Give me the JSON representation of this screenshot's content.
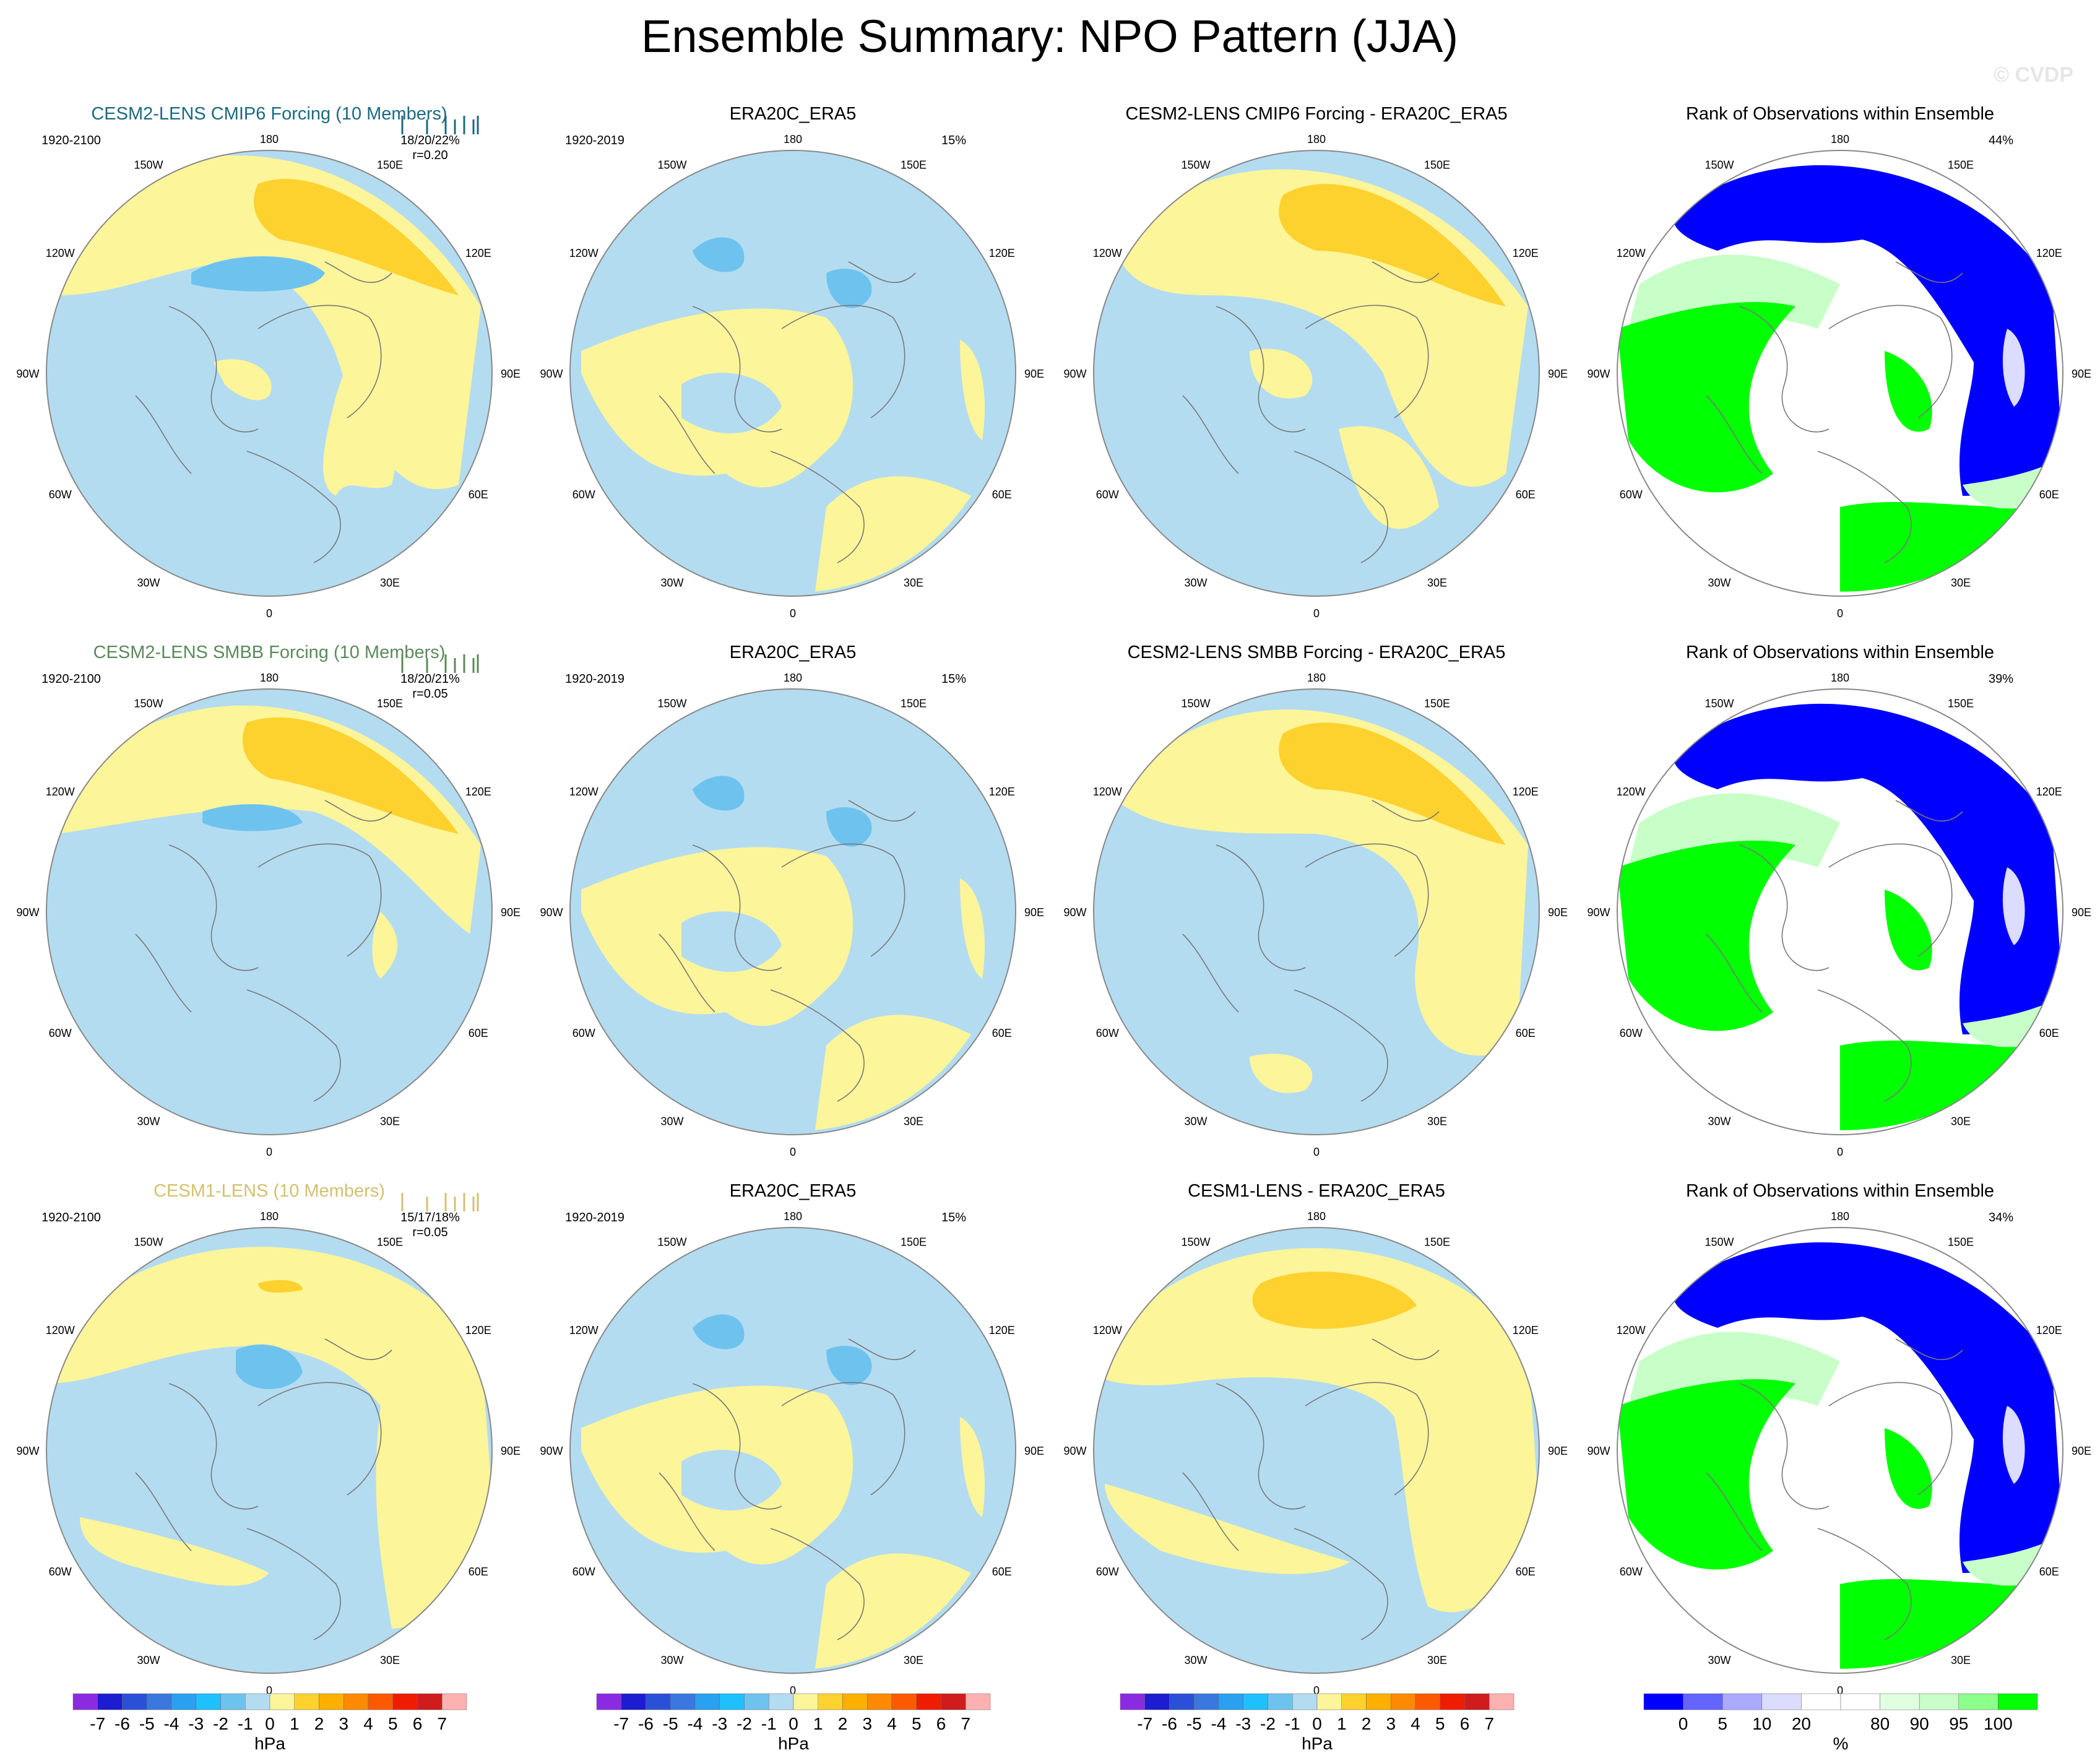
{
  "title": "Ensemble Summary: NPO Pattern (JJA)",
  "watermark": "© CVDP",
  "colors": {
    "ocean_blue": "#b4dcf0",
    "low_blue": "#6ec3ee",
    "low_blue2": "#5aa8e8",
    "yellow": "#fdf59a",
    "orange": "#fdd22e",
    "title_cmip6": "#1a6a80",
    "title_smbb": "#5a8a5a",
    "title_cesm1": "#d4c070",
    "rank_blue": "#0000ff",
    "rank_green": "#00ff00",
    "rank_lightgreen": "#c8ffc8",
    "rank_lightpurple": "#dcdcff"
  },
  "longitude_labels": [
    "180",
    "150E",
    "120E",
    "90E",
    "60E",
    "30E",
    "0",
    "30W",
    "60W",
    "90W",
    "120W",
    "150W"
  ],
  "rows": [
    {
      "panels": [
        {
          "title": "CESM2-LENS CMIP6 Forcing (10 Members)",
          "title_color": "#1a6a80",
          "left_text": "1920-2100",
          "right_text": "18/20/22%",
          "right_text2": "r=0.20",
          "kind": "model1",
          "tick_marks": true
        },
        {
          "title": "ERA20C_ERA5",
          "title_color": "#000000",
          "left_text": "1920-2019",
          "right_text": "15%",
          "right_text2": "",
          "kind": "obs"
        },
        {
          "title": "CESM2-LENS CMIP6 Forcing - ERA20C_ERA5",
          "title_color": "#000000",
          "left_text": "",
          "right_text": "",
          "right_text2": "",
          "kind": "diff1"
        },
        {
          "title": "Rank of Observations within Ensemble",
          "title_color": "#000000",
          "left_text": "",
          "right_text": "44%",
          "right_text2": "",
          "kind": "rank"
        }
      ]
    },
    {
      "panels": [
        {
          "title": "CESM2-LENS SMBB Forcing (10 Members)",
          "title_color": "#5a8a5a",
          "left_text": "1920-2100",
          "right_text": "18/20/21%",
          "right_text2": "r=0.05",
          "kind": "model2",
          "tick_marks": true
        },
        {
          "title": "ERA20C_ERA5",
          "title_color": "#000000",
          "left_text": "1920-2019",
          "right_text": "15%",
          "right_text2": "",
          "kind": "obs"
        },
        {
          "title": "CESM2-LENS SMBB Forcing - ERA20C_ERA5",
          "title_color": "#000000",
          "left_text": "",
          "right_text": "",
          "right_text2": "",
          "kind": "diff2"
        },
        {
          "title": "Rank of Observations within Ensemble",
          "title_color": "#000000",
          "left_text": "",
          "right_text": "39%",
          "right_text2": "",
          "kind": "rank"
        }
      ]
    },
    {
      "panels": [
        {
          "title": "CESM1-LENS (10 Members)",
          "title_color": "#d4c070",
          "left_text": "1920-2100",
          "right_text": "15/17/18%",
          "right_text2": "r=0.05",
          "kind": "model3",
          "tick_marks": true
        },
        {
          "title": "ERA20C_ERA5",
          "title_color": "#000000",
          "left_text": "1920-2019",
          "right_text": "15%",
          "right_text2": "",
          "kind": "obs"
        },
        {
          "title": "CESM1-LENS - ERA20C_ERA5",
          "title_color": "#000000",
          "left_text": "",
          "right_text": "",
          "right_text2": "",
          "kind": "diff3"
        },
        {
          "title": "Rank of Observations within Ensemble",
          "title_color": "#000000",
          "left_text": "",
          "right_text": "34%",
          "right_text2": "",
          "kind": "rank"
        }
      ]
    }
  ],
  "colorbars": [
    {
      "unit": "hPa",
      "labels": [
        "-7",
        "-6",
        "-5",
        "-4",
        "-3",
        "-2",
        "-1",
        "0",
        "1",
        "2",
        "3",
        "4",
        "5",
        "6",
        "7"
      ],
      "colors": [
        "#8a2be2",
        "#1c1cd0",
        "#2b50d8",
        "#3a78e0",
        "#2aa0f0",
        "#1ec0ff",
        "#6ec3ee",
        "#b4dcf0",
        "#fdf59a",
        "#fdd22e",
        "#fdb000",
        "#fd8a00",
        "#fd5a00",
        "#f01c00",
        "#d01c1c",
        "#ffb0b0"
      ]
    },
    {
      "unit": "hPa",
      "labels": [
        "-7",
        "-6",
        "-5",
        "-4",
        "-3",
        "-2",
        "-1",
        "0",
        "1",
        "2",
        "3",
        "4",
        "5",
        "6",
        "7"
      ],
      "colors": [
        "#8a2be2",
        "#1c1cd0",
        "#2b50d8",
        "#3a78e0",
        "#2aa0f0",
        "#1ec0ff",
        "#6ec3ee",
        "#b4dcf0",
        "#fdf59a",
        "#fdd22e",
        "#fdb000",
        "#fd8a00",
        "#fd5a00",
        "#f01c00",
        "#d01c1c",
        "#ffb0b0"
      ]
    },
    {
      "unit": "hPa",
      "labels": [
        "-7",
        "-6",
        "-5",
        "-4",
        "-3",
        "-2",
        "-1",
        "0",
        "1",
        "2",
        "3",
        "4",
        "5",
        "6",
        "7"
      ],
      "colors": [
        "#8a2be2",
        "#1c1cd0",
        "#2b50d8",
        "#3a78e0",
        "#2aa0f0",
        "#1ec0ff",
        "#6ec3ee",
        "#b4dcf0",
        "#fdf59a",
        "#fdd22e",
        "#fdb000",
        "#fd8a00",
        "#fd5a00",
        "#f01c00",
        "#d01c1c",
        "#ffb0b0"
      ]
    },
    {
      "unit": "%",
      "labels": [
        "0",
        "5",
        "10",
        "20",
        "80",
        "90",
        "95",
        "100"
      ],
      "label_boundary_index": [
        1,
        2,
        3,
        4,
        6,
        7,
        8,
        9
      ],
      "colors": [
        "#0000ff",
        "#6464ff",
        "#aaaaff",
        "#dcdcff",
        "#ffffff",
        "#ffffff",
        "#e0ffe0",
        "#c8ffc8",
        "#8cff8c",
        "#00ff00"
      ]
    }
  ],
  "chart_data": [
    {
      "type": "heatmap",
      "title": "CESM2-LENS CMIP6 Forcing (10 Members)",
      "period": "1920-2100",
      "pct_variance": "18/20/22%",
      "pattern_correlation": 0.2,
      "unit": "hPa",
      "levels": [
        -7,
        -6,
        -5,
        -4,
        -3,
        -2,
        -1,
        0,
        1,
        2,
        3,
        4,
        5,
        6,
        7
      ]
    },
    {
      "type": "heatmap",
      "title": "ERA20C_ERA5",
      "period": "1920-2019",
      "pct_variance": "15%",
      "unit": "hPa"
    },
    {
      "type": "heatmap",
      "title": "CESM2-LENS CMIP6 Forcing - ERA20C_ERA5",
      "unit": "hPa"
    },
    {
      "type": "heatmap",
      "title": "Rank of Observations within Ensemble",
      "pct": "44%",
      "unit": "%",
      "levels": [
        0,
        5,
        10,
        20,
        80,
        90,
        95,
        100
      ]
    },
    {
      "type": "heatmap",
      "title": "CESM2-LENS SMBB Forcing (10 Members)",
      "period": "1920-2100",
      "pct_variance": "18/20/21%",
      "pattern_correlation": 0.05,
      "unit": "hPa"
    },
    {
      "type": "heatmap",
      "title": "ERA20C_ERA5",
      "period": "1920-2019",
      "pct_variance": "15%",
      "unit": "hPa"
    },
    {
      "type": "heatmap",
      "title": "CESM2-LENS SMBB Forcing - ERA20C_ERA5",
      "unit": "hPa"
    },
    {
      "type": "heatmap",
      "title": "Rank of Observations within Ensemble",
      "pct": "39%",
      "unit": "%"
    },
    {
      "type": "heatmap",
      "title": "CESM1-LENS (10 Members)",
      "period": "1920-2100",
      "pct_variance": "15/17/18%",
      "pattern_correlation": 0.05,
      "unit": "hPa"
    },
    {
      "type": "heatmap",
      "title": "ERA20C_ERA5",
      "period": "1920-2019",
      "pct_variance": "15%",
      "unit": "hPa"
    },
    {
      "type": "heatmap",
      "title": "CESM1-LENS - ERA20C_ERA5",
      "unit": "hPa"
    },
    {
      "type": "heatmap",
      "title": "Rank of Observations within Ensemble",
      "pct": "34%",
      "unit": "%"
    }
  ]
}
